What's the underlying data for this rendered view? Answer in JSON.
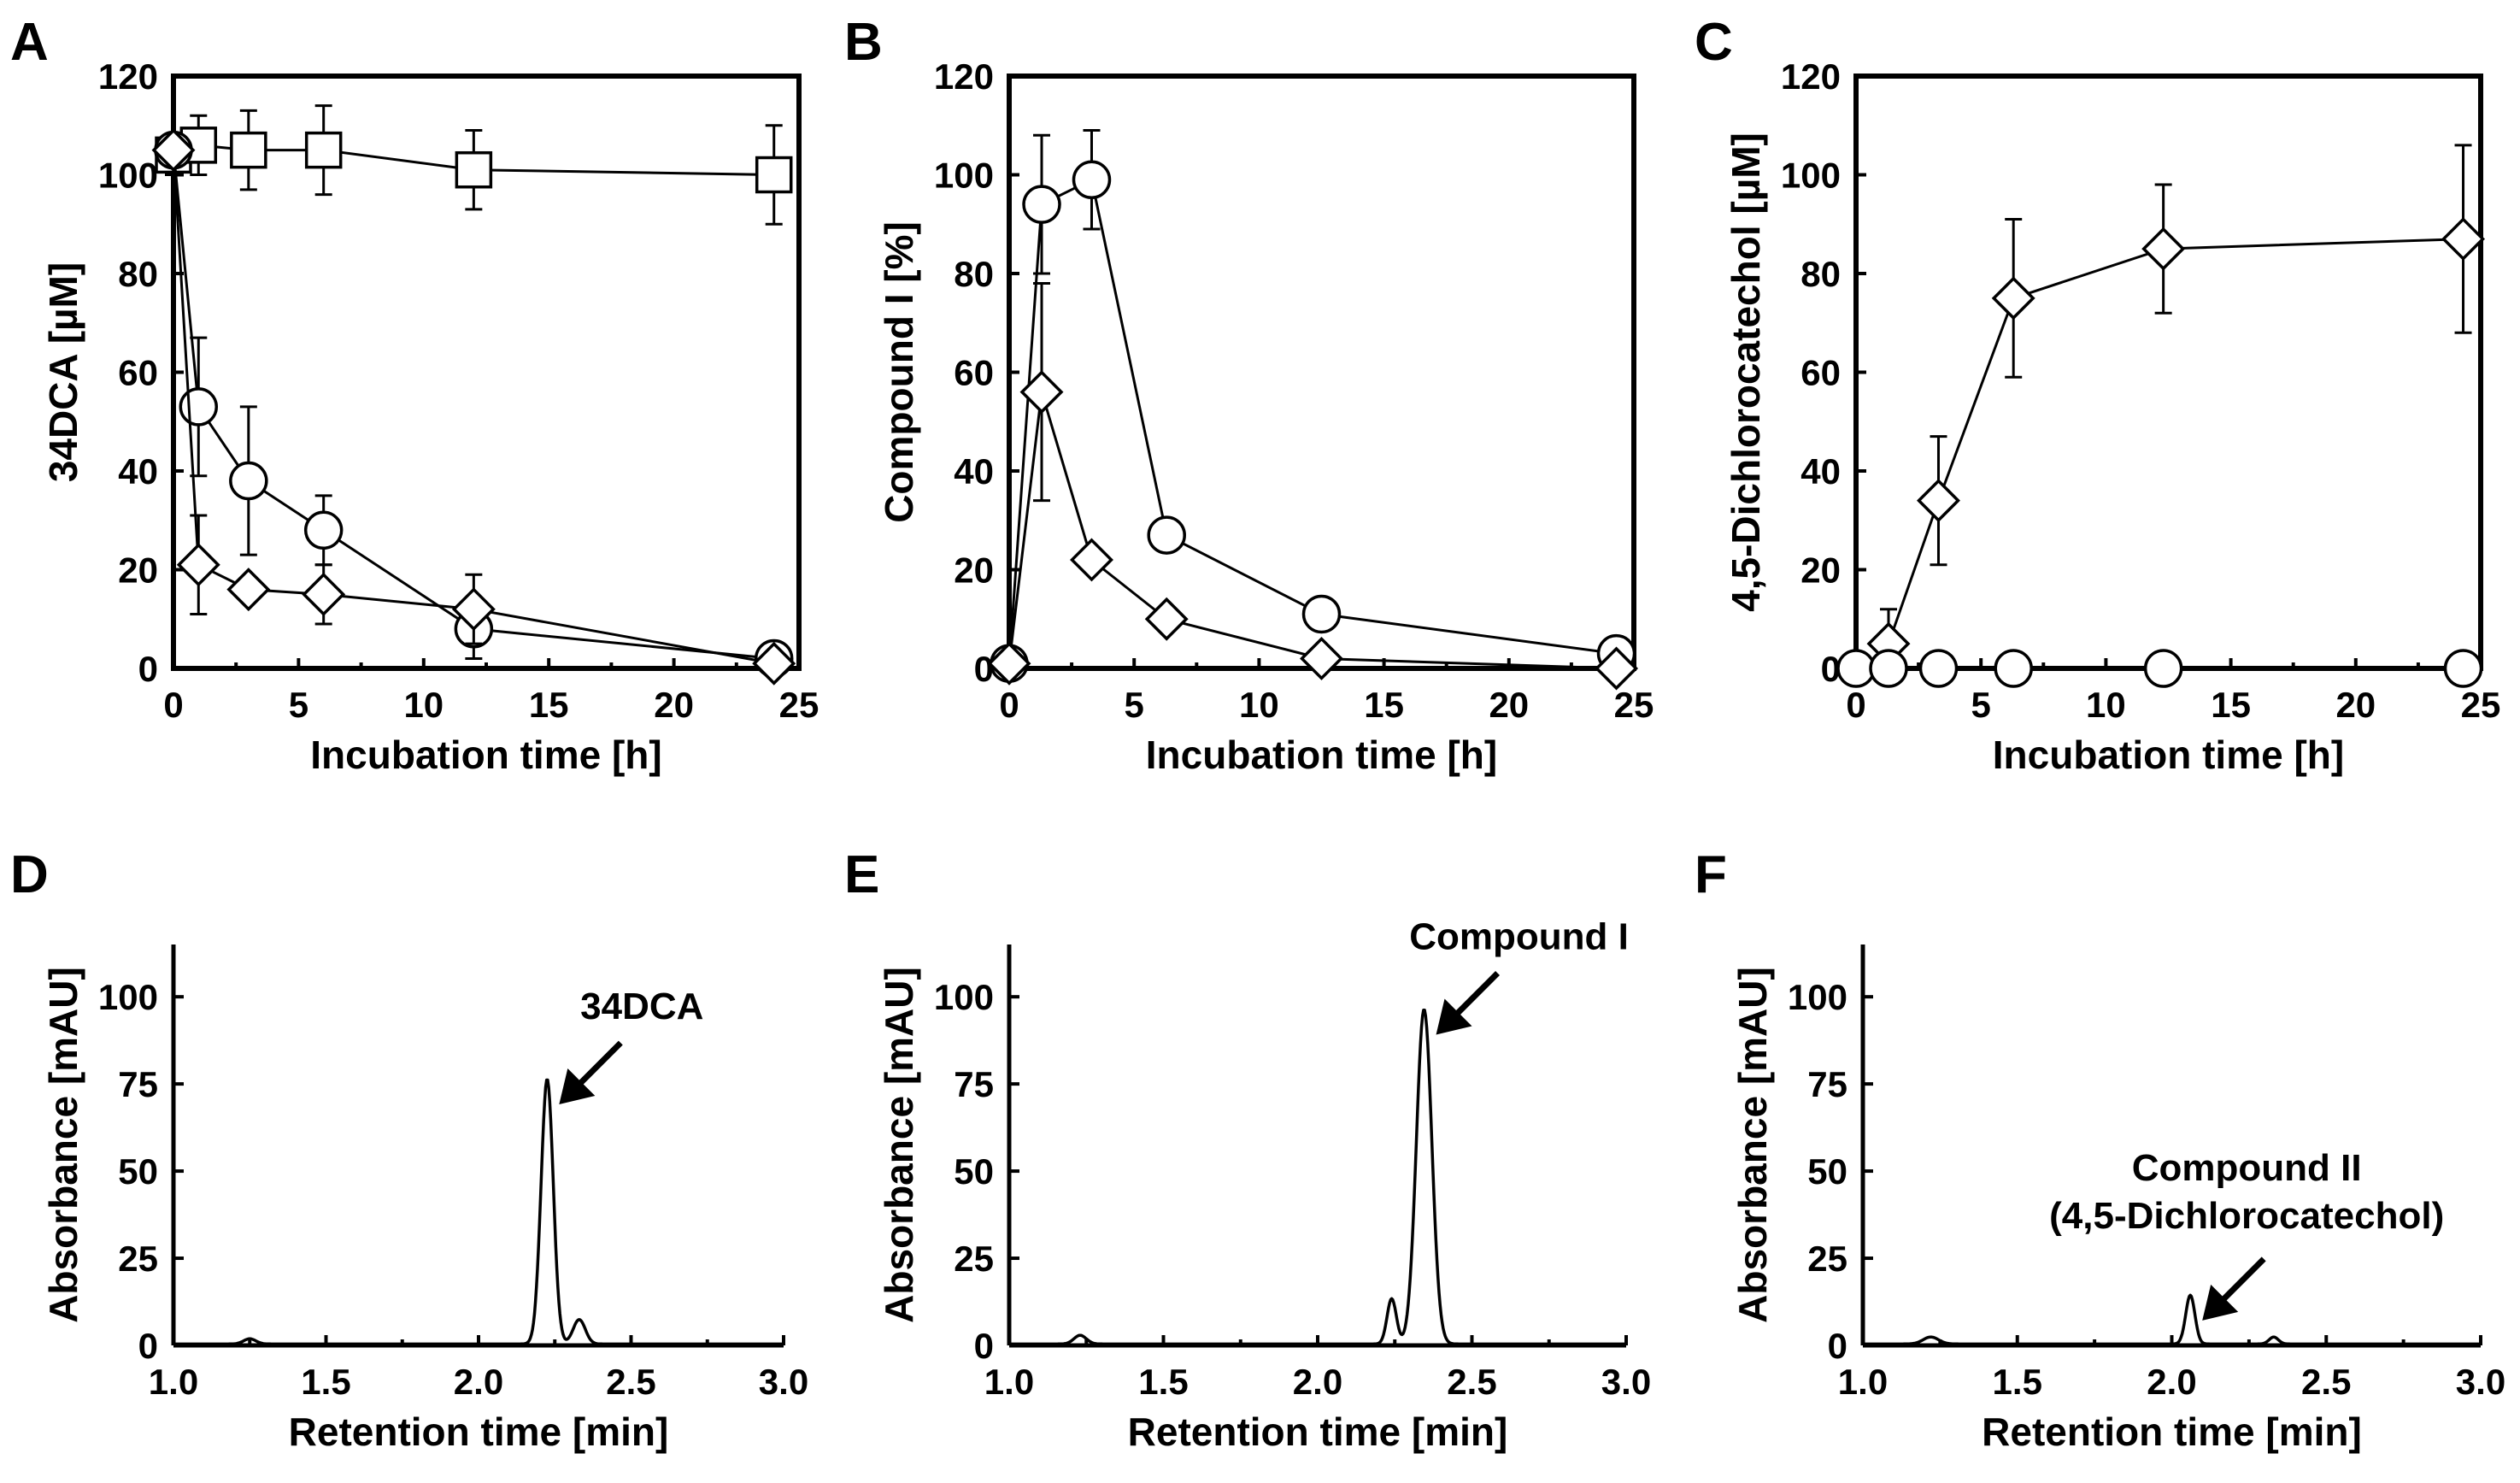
{
  "chart_data": [
    {
      "panel": "A",
      "type": "line",
      "xlabel": "Incubation time [h]",
      "ylabel": "34DCA [µM]",
      "xlim": [
        0,
        25
      ],
      "ylim": [
        0,
        120
      ],
      "xticks": [
        "0",
        "5",
        "10",
        "15",
        "20",
        "25"
      ],
      "yticks": [
        "0",
        "20",
        "40",
        "60",
        "80",
        "100",
        "120"
      ],
      "series": [
        {
          "name": "square",
          "marker": "square",
          "x": [
            0,
            1,
            3,
            6,
            12,
            24
          ],
          "values": [
            104,
            106,
            105,
            105,
            101,
            100
          ],
          "err": [
            4,
            6,
            8,
            9,
            8,
            10
          ]
        },
        {
          "name": "circle",
          "marker": "circle",
          "x": [
            0,
            1,
            3,
            6,
            12,
            24
          ],
          "values": [
            105,
            53,
            38,
            28,
            8,
            2
          ],
          "err": [
            0,
            14,
            15,
            7,
            6,
            0
          ]
        },
        {
          "name": "diamond",
          "marker": "diamond",
          "x": [
            0,
            1,
            3,
            6,
            12,
            24
          ],
          "values": [
            105,
            21,
            16,
            15,
            12,
            1
          ],
          "err": [
            0,
            10,
            0,
            6,
            7,
            0
          ]
        }
      ]
    },
    {
      "panel": "B",
      "type": "line",
      "xlabel": "Incubation time [h]",
      "ylabel": "Compound I [%]",
      "xlim": [
        0,
        25
      ],
      "ylim": [
        0,
        120
      ],
      "xticks": [
        "0",
        "5",
        "10",
        "15",
        "20",
        "25"
      ],
      "yticks": [
        "0",
        "20",
        "40",
        "60",
        "80",
        "100",
        "120"
      ],
      "series": [
        {
          "name": "circle",
          "marker": "circle",
          "x": [
            0,
            1.3,
            3.3,
            6.3,
            12.5,
            24.3
          ],
          "values": [
            1,
            94,
            99,
            27,
            11,
            3
          ],
          "err": [
            0,
            14,
            10,
            0,
            0,
            0
          ]
        },
        {
          "name": "diamond",
          "marker": "diamond",
          "x": [
            0,
            1.3,
            3.3,
            6.3,
            12.5,
            24.3
          ],
          "values": [
            1,
            56,
            22,
            10,
            2,
            0
          ],
          "err": [
            0,
            22,
            0,
            0,
            0,
            0
          ]
        }
      ]
    },
    {
      "panel": "C",
      "type": "line",
      "xlabel": "Incubation time [h]",
      "ylabel": "4,5-Dichlorocatechol [µM]",
      "xlim": [
        0,
        25
      ],
      "ylim": [
        0,
        120
      ],
      "xticks": [
        "0",
        "5",
        "10",
        "15",
        "20",
        "25"
      ],
      "yticks": [
        "0",
        "20",
        "40",
        "60",
        "80",
        "100",
        "120"
      ],
      "series": [
        {
          "name": "diamond",
          "marker": "diamond",
          "x": [
            1.3,
            3.3,
            6.3,
            12.3,
            24.3
          ],
          "values": [
            5,
            34,
            75,
            85,
            87
          ],
          "err": [
            7,
            13,
            16,
            13,
            19
          ]
        },
        {
          "name": "circle",
          "marker": "circle",
          "x": [
            0,
            1.3,
            3.3,
            6.3,
            12.3,
            24.3
          ],
          "values": [
            0,
            0,
            0,
            0,
            0,
            0
          ],
          "err": [
            0,
            0,
            0,
            0,
            0,
            0
          ]
        }
      ]
    },
    {
      "panel": "D",
      "type": "line",
      "xlabel": "Retention time [min]",
      "ylabel": "Absorbance [mAU]",
      "xlim": [
        1.0,
        3.0
      ],
      "ylim": [
        0,
        115
      ],
      "xticks": [
        "1.0",
        "1.5",
        "2.0",
        "2.5",
        "3.0"
      ],
      "yticks": [
        "0",
        "25",
        "50",
        "75",
        "100"
      ],
      "peaks": [
        {
          "x": 1.25,
          "y": 1.5,
          "w": 0.02
        },
        {
          "x": 2.225,
          "y": 76,
          "w": 0.02
        },
        {
          "x": 2.33,
          "y": 7,
          "w": 0.02
        }
      ],
      "annotation": {
        "text": "34DCA",
        "peak_x": 2.225,
        "peak_y": 76
      }
    },
    {
      "panel": "E",
      "type": "line",
      "xlabel": "Retention time [min]",
      "ylabel": "Absorbance [mAU]",
      "xlim": [
        1.0,
        3.0
      ],
      "ylim": [
        0,
        115
      ],
      "xticks": [
        "1.0",
        "1.5",
        "2.0",
        "2.5",
        "3.0"
      ],
      "yticks": [
        "0",
        "25",
        "50",
        "75",
        "100"
      ],
      "peaks": [
        {
          "x": 1.23,
          "y": 2.5,
          "w": 0.02
        },
        {
          "x": 2.24,
          "y": 13,
          "w": 0.015
        },
        {
          "x": 2.345,
          "y": 96,
          "w": 0.025
        }
      ],
      "annotation": {
        "text": "Compound I",
        "peak_x": 2.345,
        "peak_y": 96
      }
    },
    {
      "panel": "F",
      "type": "line",
      "xlabel": "Retention time [min]",
      "ylabel": "Absorbance [mAU]",
      "xlim": [
        1.0,
        3.0
      ],
      "ylim": [
        0,
        115
      ],
      "xticks": [
        "1.0",
        "1.5",
        "2.0",
        "2.5",
        "3.0"
      ],
      "yticks": [
        "0",
        "25",
        "50",
        "75",
        "100"
      ],
      "peaks": [
        {
          "x": 1.22,
          "y": 2,
          "w": 0.025
        },
        {
          "x": 2.06,
          "y": 14,
          "w": 0.015
        },
        {
          "x": 2.33,
          "y": 2,
          "w": 0.015
        }
      ],
      "annotation": {
        "text": "Compound II",
        "text2": "(4,5-Dichlorocatechol)",
        "peak_x": 2.06,
        "peak_y": 14
      }
    }
  ]
}
